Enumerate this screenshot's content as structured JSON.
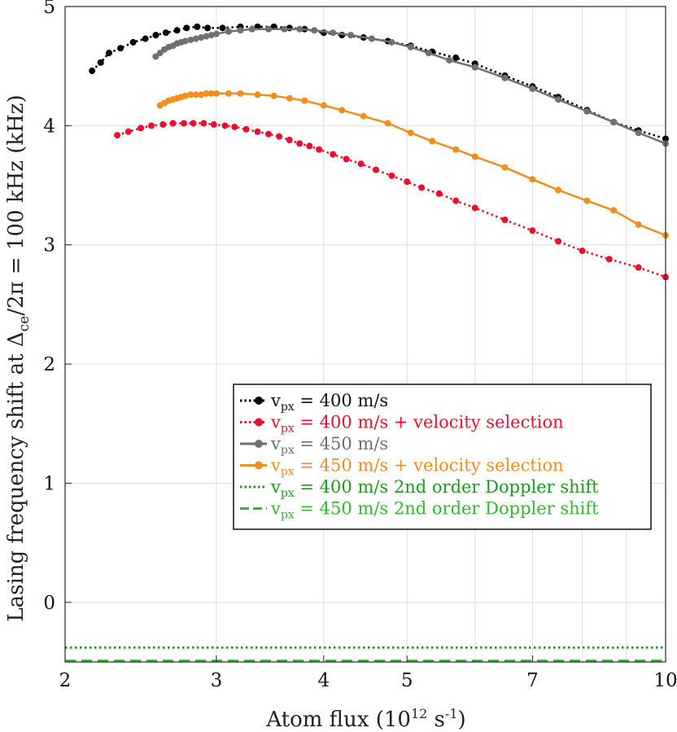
{
  "chart_data": {
    "type": "line",
    "xlabel": {
      "base": "Atom flux (10",
      "exponent": "12",
      "unit": " s",
      "unit_exp": "-1",
      "close": ")"
    },
    "ylabel": {
      "prefix": "Lasing frequency shift at Δ",
      "subscript": "ce",
      "suffix": "/2π = 100 kHz (kHz)"
    },
    "x_scale": "log",
    "xlim": [
      2,
      10
    ],
    "ylim": [
      -0.5,
      5
    ],
    "x_ticks": [
      2,
      3,
      4,
      5,
      7,
      10
    ],
    "x_minor_gridlines": [
      6,
      8,
      9
    ],
    "y_ticks": [
      0,
      1,
      2,
      3,
      4,
      5
    ],
    "grid": true,
    "legend_position": "center-right",
    "series": [
      {
        "name": "v_px = 400 m/s",
        "legend": {
          "v": "v",
          "sub": "px",
          "rest": " = 400 m/s"
        },
        "color": "#000000",
        "line": "dotted",
        "marker": true,
        "x": [
          2.15,
          2.2,
          2.25,
          2.32,
          2.4,
          2.48,
          2.55,
          2.62,
          2.7,
          2.77,
          2.85,
          2.93,
          3.05,
          3.2,
          3.35,
          3.5,
          3.65,
          3.8,
          4.0,
          4.2,
          4.45,
          4.75,
          5.05,
          5.35,
          5.7,
          6.0,
          6.5,
          7.0,
          7.5,
          8.1,
          8.7,
          9.3,
          10.0
        ],
        "y": [
          4.46,
          4.53,
          4.61,
          4.65,
          4.7,
          4.73,
          4.76,
          4.78,
          4.8,
          4.82,
          4.83,
          4.82,
          4.82,
          4.83,
          4.83,
          4.83,
          4.82,
          4.81,
          4.78,
          4.76,
          4.74,
          4.71,
          4.67,
          4.62,
          4.57,
          4.52,
          4.42,
          4.33,
          4.24,
          4.13,
          4.03,
          3.96,
          3.89
        ]
      },
      {
        "name": "v_px = 400 m/s + velocity selection",
        "legend": {
          "v": "v",
          "sub": "px",
          "rest": " = 400 m/s + velocity selection"
        },
        "color": "#e8112d",
        "line": "dotted",
        "marker": true,
        "x": [
          2.3,
          2.37,
          2.45,
          2.52,
          2.6,
          2.67,
          2.75,
          2.82,
          2.9,
          2.98,
          3.07,
          3.15,
          3.25,
          3.35,
          3.45,
          3.55,
          3.65,
          3.75,
          3.85,
          3.95,
          4.1,
          4.25,
          4.42,
          4.6,
          4.8,
          5.0,
          5.2,
          5.45,
          5.7,
          6.0,
          6.5,
          7.0,
          7.5,
          8.0,
          8.6,
          9.3,
          10.0
        ],
        "y": [
          3.92,
          3.95,
          3.98,
          4.0,
          4.01,
          4.02,
          4.02,
          4.02,
          4.02,
          4.01,
          4.0,
          3.99,
          3.97,
          3.95,
          3.93,
          3.91,
          3.88,
          3.85,
          3.83,
          3.8,
          3.76,
          3.72,
          3.68,
          3.63,
          3.58,
          3.53,
          3.48,
          3.43,
          3.37,
          3.31,
          3.21,
          3.12,
          3.03,
          2.95,
          2.88,
          2.81,
          2.73
        ]
      },
      {
        "name": "v_px = 450 m/s",
        "legend": {
          "v": "v",
          "sub": "px",
          "rest": " = 450 m/s"
        },
        "color": "#707070",
        "line": "solid",
        "marker": true,
        "x": [
          2.55,
          2.58,
          2.61,
          2.64,
          2.67,
          2.7,
          2.73,
          2.76,
          2.8,
          2.84,
          2.88,
          2.92,
          2.96,
          3.0,
          3.1,
          3.2,
          3.3,
          3.45,
          3.6,
          3.75,
          3.9,
          4.1,
          4.3,
          4.55,
          4.8,
          5.05,
          5.3,
          5.6,
          6.0,
          6.5,
          7.0,
          7.5,
          8.1,
          8.7,
          9.3,
          10.0
        ],
        "y": [
          4.58,
          4.61,
          4.64,
          4.66,
          4.67,
          4.69,
          4.7,
          4.71,
          4.72,
          4.73,
          4.74,
          4.75,
          4.76,
          4.77,
          4.79,
          4.8,
          4.81,
          4.81,
          4.81,
          4.81,
          4.8,
          4.78,
          4.76,
          4.73,
          4.7,
          4.66,
          4.61,
          4.55,
          4.49,
          4.4,
          4.31,
          4.22,
          4.12,
          4.03,
          3.94,
          3.85
        ]
      },
      {
        "name": "v_px = 450 m/s + velocity selection",
        "legend": {
          "v": "v",
          "sub": "px",
          "rest": " = 450 m/s + velocity selection"
        },
        "color": "#f28e1c",
        "line": "solid",
        "marker": true,
        "x": [
          2.58,
          2.61,
          2.64,
          2.67,
          2.7,
          2.73,
          2.76,
          2.8,
          2.84,
          2.88,
          2.92,
          2.96,
          3.0,
          3.1,
          3.2,
          3.35,
          3.5,
          3.65,
          3.8,
          4.0,
          4.2,
          4.45,
          4.75,
          5.05,
          5.35,
          5.7,
          6.0,
          6.5,
          7.0,
          7.5,
          8.1,
          8.7,
          9.3,
          10.0
        ],
        "y": [
          4.17,
          4.19,
          4.21,
          4.22,
          4.23,
          4.24,
          4.25,
          4.26,
          4.26,
          4.26,
          4.27,
          4.27,
          4.27,
          4.27,
          4.27,
          4.26,
          4.25,
          4.23,
          4.21,
          4.17,
          4.13,
          4.08,
          4.02,
          3.94,
          3.87,
          3.8,
          3.74,
          3.65,
          3.55,
          3.46,
          3.37,
          3.29,
          3.17,
          3.08
        ]
      },
      {
        "name": "v_px = 400 m/s 2nd order Doppler shift",
        "legend": {
          "v": "v",
          "sub": "px",
          "rest": " = 400 m/s 2nd order Doppler shift"
        },
        "color": "#1f9a1f",
        "line": "dotted",
        "marker": false,
        "x": [
          2,
          10
        ],
        "y": [
          -0.38,
          -0.38
        ]
      },
      {
        "name": "v_px = 450 m/s 2nd order Doppler shift",
        "legend": {
          "v": "v",
          "sub": "px",
          "rest": " = 450 m/s 2nd order Doppler shift"
        },
        "color": "#2dbb2d",
        "line": "dashed",
        "marker": false,
        "x": [
          2,
          10
        ],
        "y": [
          -0.49,
          -0.49
        ]
      }
    ]
  }
}
